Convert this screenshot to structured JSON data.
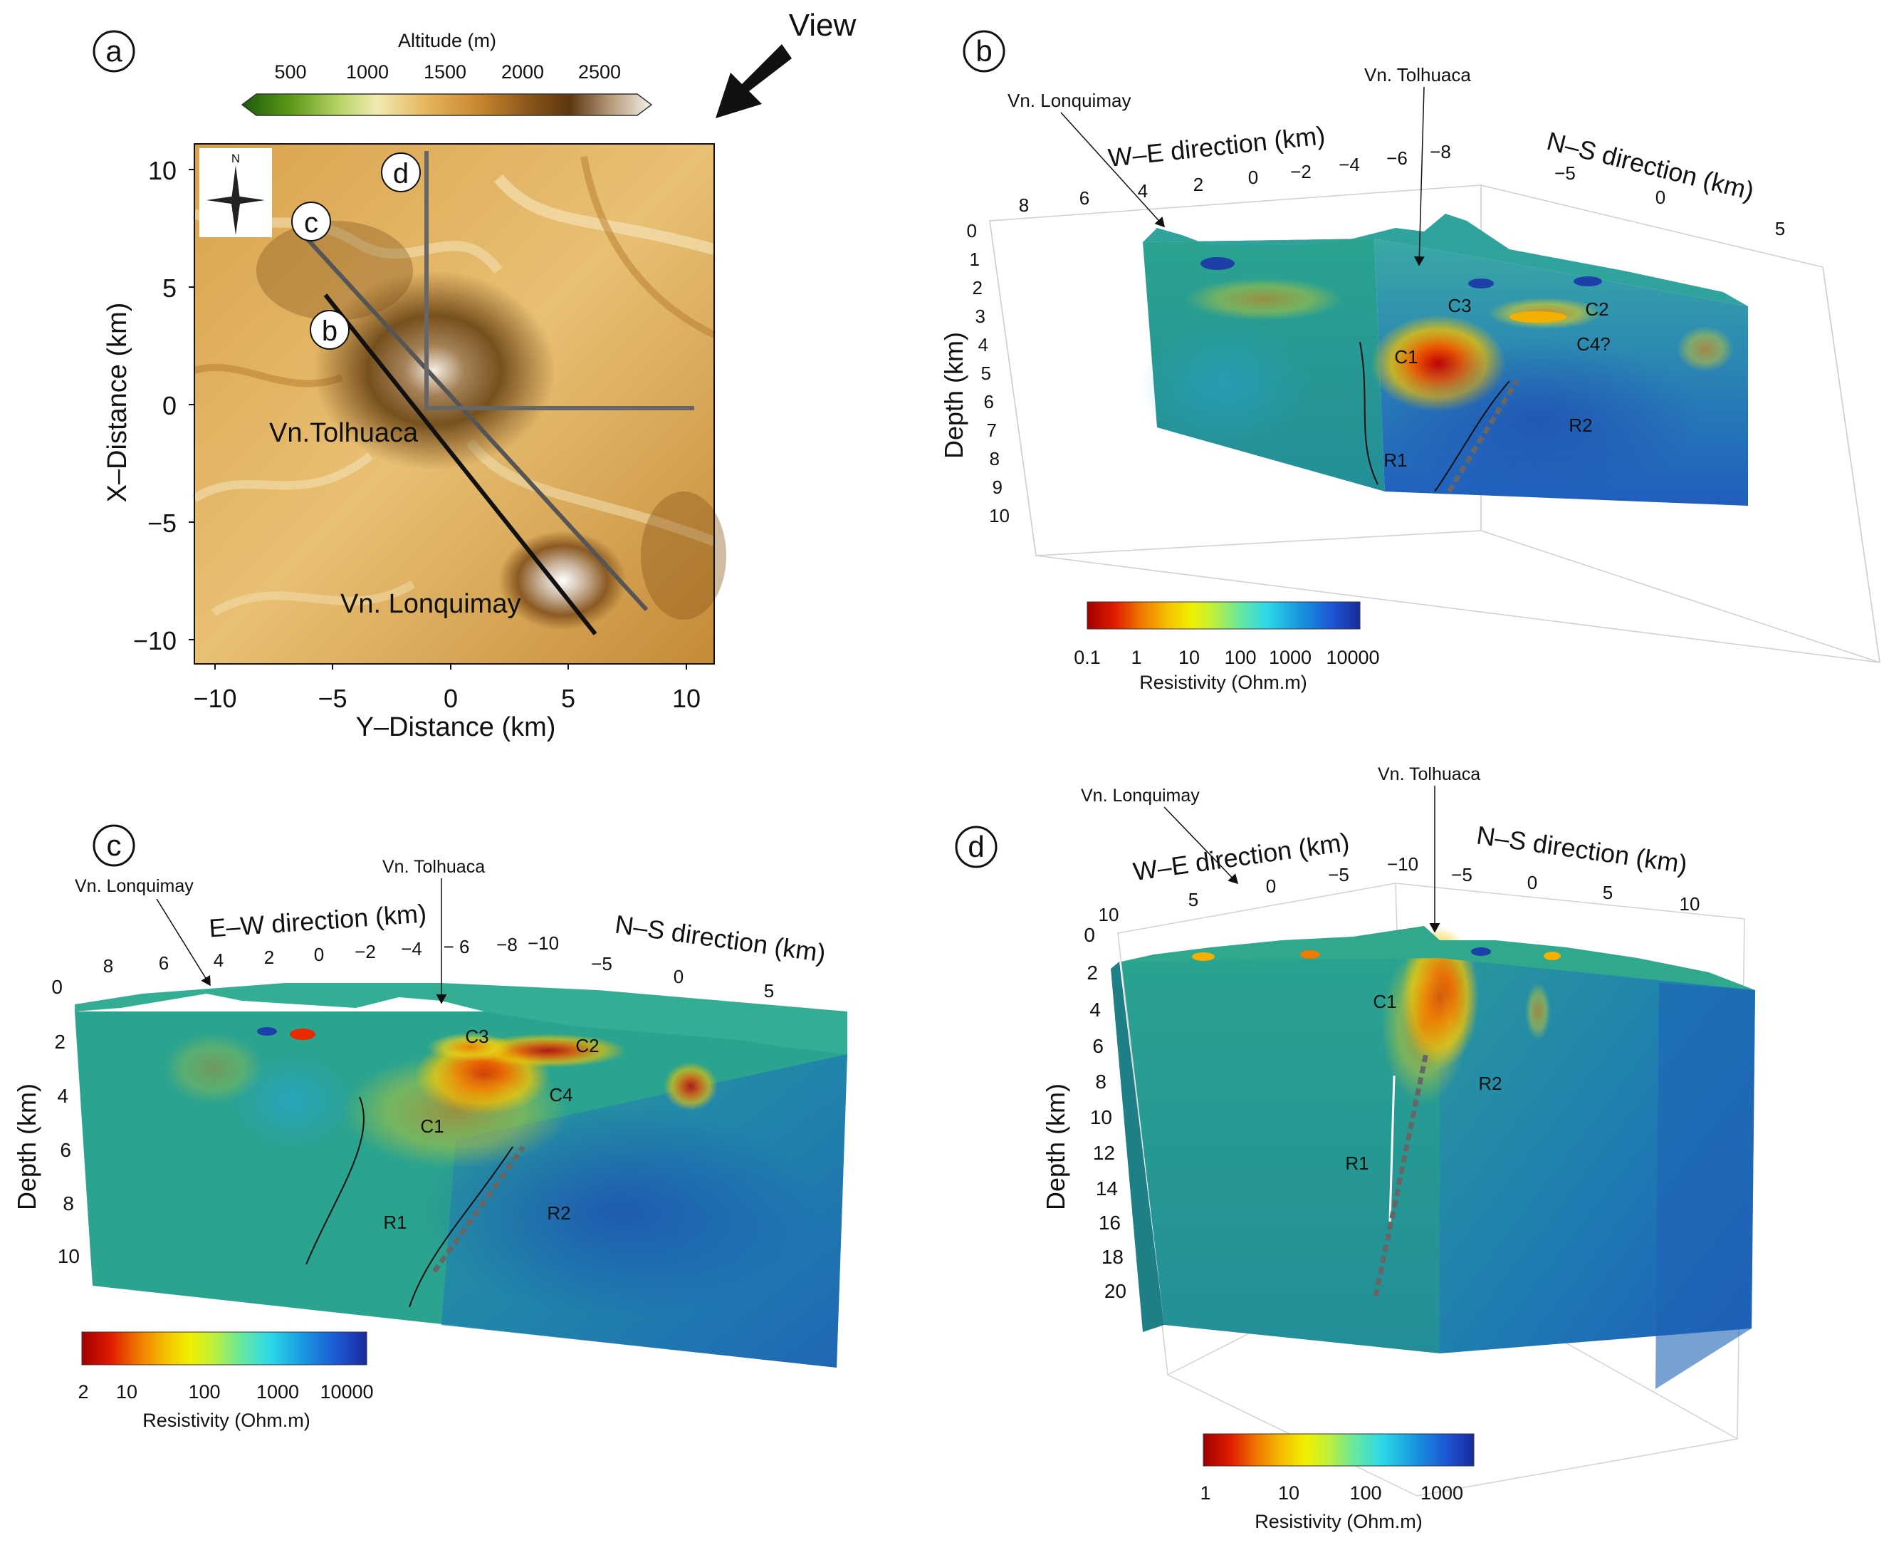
{
  "panel_a": {
    "label": "a",
    "view_label": "View",
    "colorbar": {
      "title": "Altitude (m)",
      "ticks": [
        "500",
        "1000",
        "1500",
        "2000",
        "2500"
      ],
      "colors": [
        "#1a5a08",
        "#5e9a18",
        "#b9d468",
        "#f2eab2",
        "#e5b55c",
        "#c8862e",
        "#8a561a",
        "#5d3610",
        "#b59a7a",
        "#f4f0ea"
      ]
    },
    "compass_n": "N",
    "xlabel": "Y–Distance (km)",
    "ylabel": "X–Distance (km)",
    "x_ticks": [
      "−10",
      "−5",
      "0",
      "5",
      "10"
    ],
    "y_ticks": [
      "10",
      "5",
      "0",
      "−5",
      "−10"
    ],
    "profile_labels": [
      "c",
      "b",
      "d"
    ],
    "volcano_labels": [
      "Vn.Tolhuaca",
      "Vn. Lonquimay"
    ]
  },
  "panel_b": {
    "label": "b",
    "callout_left": "Vn. Lonquimay",
    "callout_right": "Vn. Tolhuaca",
    "axis_we_title": "W–E direction (km)",
    "axis_we_ticks": [
      "8",
      "6",
      "4",
      "2",
      "0",
      "−2",
      "−4",
      "−6",
      "−8"
    ],
    "axis_ns_title": "N–S direction (km)",
    "axis_ns_ticks": [
      "−5",
      "0",
      "5"
    ],
    "depth_title": "Depth (km)",
    "depth_ticks": [
      "0",
      "1",
      "2",
      "3",
      "4",
      "5",
      "6",
      "7",
      "8",
      "9",
      "10"
    ],
    "features": [
      "C3",
      "C2",
      "C1",
      "C4?",
      "R2",
      "R1"
    ],
    "colorbar_ticks": [
      "0.1",
      "1",
      "10",
      "100",
      "1000",
      "10000"
    ],
    "colorbar_title": "Resistivity (Ohm.m)"
  },
  "panel_c": {
    "label": "c",
    "callout_left": "Vn. Lonquimay",
    "callout_right": "Vn. Tolhuaca",
    "axis_ew_title": "E–W direction (km)",
    "axis_ew_ticks": [
      "8",
      "6",
      "4",
      "2",
      "0",
      "−2",
      "−4",
      "− 6",
      "−8",
      "−10"
    ],
    "axis_ns_title": "N–S direction (km)",
    "axis_ns_ticks": [
      "−5",
      "0",
      "5"
    ],
    "depth_title": "Depth (km)",
    "depth_ticks": [
      "0",
      "2",
      "4",
      "6",
      "8",
      "10"
    ],
    "features": [
      "C3",
      "C2",
      "C4",
      "C1",
      "R1",
      "R2"
    ],
    "colorbar_ticks": [
      "2",
      "10",
      "100",
      "1000",
      "10000"
    ],
    "colorbar_title": "Resistivity (Ohm.m)"
  },
  "panel_d": {
    "label": "d",
    "callout_left": "Vn. Lonquimay",
    "callout_right": "Vn. Tolhuaca",
    "axis_we_title": "W–E direction (km)",
    "axis_we_ticks": [
      "10",
      "5",
      "0",
      "−5",
      "−10"
    ],
    "axis_ns_title": "N–S direction (km)",
    "axis_ns_ticks": [
      "−5",
      "0",
      "5",
      "10"
    ],
    "depth_title": "Depth (km)",
    "depth_ticks": [
      "0",
      "2",
      "4",
      "6",
      "8",
      "10",
      "12",
      "14",
      "16",
      "18",
      "20"
    ],
    "features": [
      "C1",
      "R2",
      "R1"
    ],
    "colorbar_ticks": [
      "1",
      "10",
      "100",
      "1000"
    ],
    "colorbar_title": "Resistivity (Ohm.m)"
  },
  "resistivity_colors": [
    "#a10000",
    "#e01b00",
    "#f07a00",
    "#f5c400",
    "#f0f000",
    "#bff03a",
    "#67e8a0",
    "#2cd9e8",
    "#1896e0",
    "#1d55d2",
    "#1a2a9e"
  ]
}
